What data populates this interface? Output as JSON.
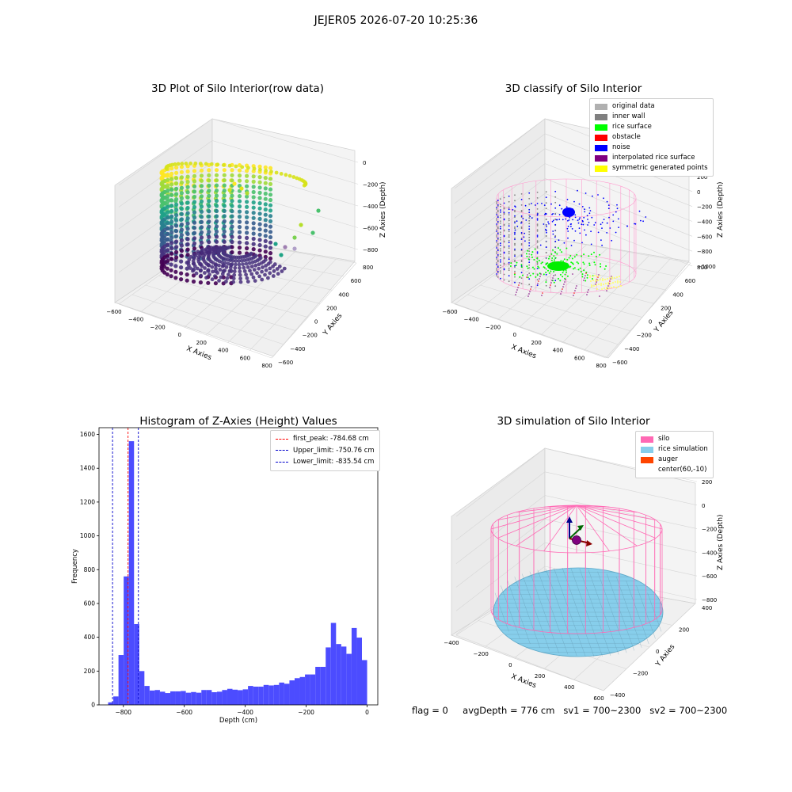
{
  "suptitle": "JEJER05 2026-07-20 10:25:36",
  "status": {
    "flag": "flag = 0",
    "avg_depth": "avgDepth = 776 cm",
    "sv1": "sv1 = 700~2300",
    "sv2": "sv2 = 700~2300"
  },
  "colors": {
    "histogram_bar": "#4c4cff",
    "first_peak_line": "#ff0000",
    "limit_lines": "#0000cc",
    "silo": "#ff69b4",
    "rice": "#87ceeb",
    "auger": "#ff4500",
    "original": "#b0b0b0",
    "inner_wall": "#808080",
    "rice_surface": "#00ff00",
    "obstacle": "#ff0000",
    "noise": "#0000ff",
    "interpolated": "#800080",
    "symmetric": "#ffff00"
  },
  "panel1": {
    "title": "3D Plot of Silo Interior(row data)",
    "x_label": "X Axies",
    "y_label": "Y Axies",
    "z_label": "Z Axies (Depth)",
    "x_ticks": [
      "−600",
      "−400",
      "−200",
      "0",
      "200",
      "400",
      "600",
      "800"
    ],
    "y_ticks": [
      "−600",
      "−400",
      "−200",
      "0",
      "200",
      "400",
      "600",
      "800"
    ],
    "z_ticks": [
      "0",
      "−200",
      "−400",
      "−600",
      "−800"
    ]
  },
  "panel2": {
    "title": "3D classify of Silo Interior",
    "x_label": "X Axies",
    "y_label": "Y Axies",
    "z_label": "Z Axies (Depth)",
    "x_ticks": [
      "−600",
      "−400",
      "−200",
      "0",
      "200",
      "400",
      "600",
      "800"
    ],
    "y_ticks": [
      "−600",
      "−400",
      "−200",
      "0",
      "200",
      "400",
      "600",
      "800"
    ],
    "z_ticks": [
      "200",
      "0",
      "−200",
      "−400",
      "−600",
      "−800",
      "−1000"
    ],
    "legend": [
      {
        "label": "original data",
        "color": "#b0b0b0"
      },
      {
        "label": "inner wall",
        "color": "#808080"
      },
      {
        "label": "rice surface",
        "color": "#00ff00"
      },
      {
        "label": "obstacle",
        "color": "#ff0000"
      },
      {
        "label": "noise",
        "color": "#0000ff"
      },
      {
        "label": "interpolated rice surface",
        "color": "#800080"
      },
      {
        "label": "symmetric generated points",
        "color": "#ffff00"
      }
    ]
  },
  "panel4": {
    "title": "3D simulation of Silo Interior",
    "x_label": "X Axies",
    "y_label": "Y Axies",
    "z_label": "Z Axies (Depth)",
    "x_ticks": [
      "−400",
      "−200",
      "0",
      "200",
      "400",
      "600"
    ],
    "y_ticks": [
      "−400",
      "−200",
      "0",
      "200",
      "400"
    ],
    "z_ticks": [
      "200",
      "0",
      "−200",
      "−400",
      "−600",
      "−800"
    ],
    "legend": [
      {
        "label": "silo",
        "color": "#ff69b4"
      },
      {
        "label": "rice simulation",
        "color": "#87ceeb"
      },
      {
        "label": "auger",
        "color": "#ff4500"
      },
      {
        "label": "center(60,-10)",
        "color": ""
      }
    ]
  },
  "chart_data": {
    "type": "bar",
    "title": "Histogram of Z-Axies (Height) Values",
    "xlabel": "Depth (cm)",
    "ylabel": "Frequency",
    "xlim": [
      -880,
      35
    ],
    "ylim": [
      0,
      1640
    ],
    "x_ticks": [
      -800,
      -600,
      -400,
      -200,
      0
    ],
    "y_ticks": [
      0,
      200,
      400,
      600,
      800,
      1000,
      1200,
      1400,
      1600
    ],
    "bin_width": 17,
    "bins": [
      {
        "x": -850,
        "value": 15
      },
      {
        "x": -833,
        "value": 50
      },
      {
        "x": -816,
        "value": 295
      },
      {
        "x": -799,
        "value": 760
      },
      {
        "x": -782,
        "value": 1560
      },
      {
        "x": -765,
        "value": 478
      },
      {
        "x": -748,
        "value": 200
      },
      {
        "x": -731,
        "value": 112
      },
      {
        "x": -714,
        "value": 85
      },
      {
        "x": -697,
        "value": 88
      },
      {
        "x": -680,
        "value": 78
      },
      {
        "x": -663,
        "value": 70
      },
      {
        "x": -646,
        "value": 80
      },
      {
        "x": -629,
        "value": 80
      },
      {
        "x": -612,
        "value": 82
      },
      {
        "x": -595,
        "value": 72
      },
      {
        "x": -578,
        "value": 76
      },
      {
        "x": -561,
        "value": 72
      },
      {
        "x": -544,
        "value": 88
      },
      {
        "x": -527,
        "value": 88
      },
      {
        "x": -510,
        "value": 75
      },
      {
        "x": -493,
        "value": 78
      },
      {
        "x": -476,
        "value": 88
      },
      {
        "x": -459,
        "value": 95
      },
      {
        "x": -442,
        "value": 90
      },
      {
        "x": -425,
        "value": 87
      },
      {
        "x": -408,
        "value": 92
      },
      {
        "x": -391,
        "value": 112
      },
      {
        "x": -374,
        "value": 108
      },
      {
        "x": -357,
        "value": 108
      },
      {
        "x": -340,
        "value": 118
      },
      {
        "x": -323,
        "value": 115
      },
      {
        "x": -306,
        "value": 118
      },
      {
        "x": -289,
        "value": 132
      },
      {
        "x": -272,
        "value": 125
      },
      {
        "x": -255,
        "value": 145
      },
      {
        "x": -238,
        "value": 158
      },
      {
        "x": -221,
        "value": 165
      },
      {
        "x": -204,
        "value": 180
      },
      {
        "x": -187,
        "value": 180
      },
      {
        "x": -170,
        "value": 225
      },
      {
        "x": -153,
        "value": 225
      },
      {
        "x": -136,
        "value": 340
      },
      {
        "x": -119,
        "value": 485
      },
      {
        "x": -102,
        "value": 360
      },
      {
        "x": -85,
        "value": 345
      },
      {
        "x": -68,
        "value": 302
      },
      {
        "x": -51,
        "value": 455
      },
      {
        "x": -34,
        "value": 398
      },
      {
        "x": -17,
        "value": 265
      }
    ],
    "vlines": [
      {
        "x": -784.68,
        "label": "first_peak: -784.68 cm",
        "color": "#ff0000"
      },
      {
        "x": -750.76,
        "label": "Upper_limit: -750.76 cm",
        "color": "#0000cc"
      },
      {
        "x": -835.54,
        "label": "Lower_limit: -835.54 cm",
        "color": "#0000cc"
      }
    ],
    "legend_position": "upper right"
  }
}
